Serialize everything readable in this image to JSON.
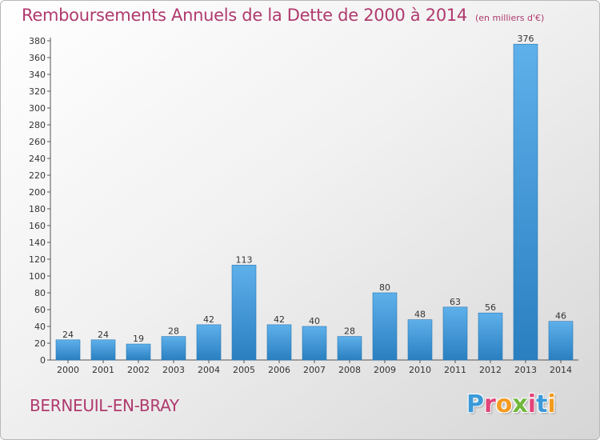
{
  "header": {
    "title": "Remboursements Annuels de la Dette de 2000 à 2014",
    "unit": "(en milliers d'€)"
  },
  "footer": {
    "commune": "BERNEUIL-EN-BRAY",
    "brand_letters": [
      "P",
      "r",
      "o",
      "x",
      "i",
      "t",
      "i"
    ],
    "brand_colors": [
      "#3a9ad9",
      "#e2457a",
      "#f39a1f",
      "#6fb83a",
      "#e2457a",
      "#3a9ad9",
      "#f39a1f"
    ]
  },
  "colors": {
    "title": "#b03a6e",
    "bar_light": "#5eb0ea",
    "bar_dark": "#2a7fc0",
    "axis": "#555555"
  },
  "chart_data": {
    "type": "bar",
    "categories": [
      "2000",
      "2001",
      "2002",
      "2003",
      "2004",
      "2005",
      "2006",
      "2007",
      "2008",
      "2009",
      "2010",
      "2011",
      "2012",
      "2013",
      "2014"
    ],
    "values": [
      24,
      24,
      19,
      28,
      42,
      113,
      42,
      40,
      28,
      80,
      48,
      63,
      56,
      376,
      46
    ],
    "title": "Remboursements Annuels de la Dette de 2000 à 2014",
    "ylim": [
      0,
      380
    ],
    "ytick_step": 20,
    "grid": false,
    "data_labels": true
  }
}
